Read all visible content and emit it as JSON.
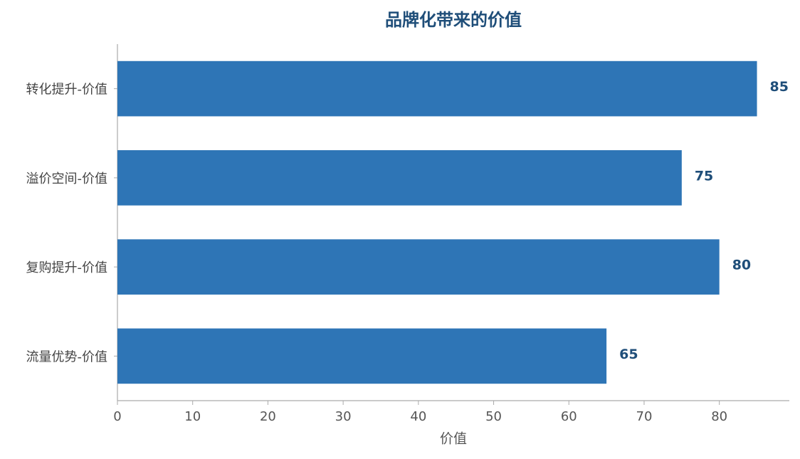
{
  "chart_data": {
    "type": "barh",
    "title": "品牌化带来的价值",
    "categories": [
      "转化提升-价值",
      "溢价空间-价值",
      "复购提升-价值",
      "流量优势-价值"
    ],
    "values": [
      85,
      75,
      80,
      65
    ],
    "color": "#2e75b6",
    "xlabel": "价值",
    "xlim": [
      0,
      89.3
    ],
    "xticks": [
      0,
      10,
      20,
      30,
      40,
      50,
      60,
      70,
      80
    ]
  }
}
